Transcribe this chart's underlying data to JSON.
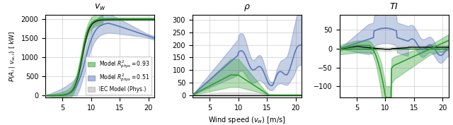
{
  "title_vw": "$v_w$",
  "title_rho": "$\\rho$",
  "title_TI": "$TI$",
  "xlabel": "Wind speed ($v_w$) [m/s]",
  "ylabel_left": "$P(A_i \\mid v_{w,i})$ [ kW]",
  "legend_green": "Model $R^2_{phys} = 0.93$",
  "legend_blue": "Model $R^2_{phys} = 0.51$",
  "legend_gray": "IEC Model (Phys.)",
  "color_green": "#2ca02c",
  "color_blue": "#5b79b5",
  "color_gray": "#aaaaaa",
  "x_min": 2,
  "x_max": 21
}
